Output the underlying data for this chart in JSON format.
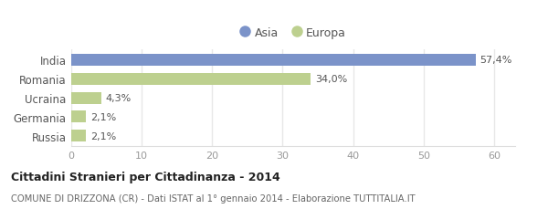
{
  "categories": [
    "India",
    "Romania",
    "Ucraina",
    "Germania",
    "Russia"
  ],
  "values": [
    57.4,
    34.0,
    4.3,
    2.1,
    2.1
  ],
  "labels": [
    "57,4%",
    "34,0%",
    "4,3%",
    "2,1%",
    "2,1%"
  ],
  "colors": [
    "#7b93c9",
    "#bdd08f",
    "#bdd08f",
    "#bdd08f",
    "#bdd08f"
  ],
  "legend_entries": [
    {
      "label": "Asia",
      "color": "#7b93c9"
    },
    {
      "label": "Europa",
      "color": "#bdd08f"
    }
  ],
  "xlim": [
    0,
    63
  ],
  "xticks": [
    0,
    10,
    20,
    30,
    40,
    50,
    60
  ],
  "title": "Cittadini Stranieri per Cittadinanza - 2014",
  "subtitle": "COMUNE DI DRIZZONA (CR) - Dati ISTAT al 1° gennaio 2014 - Elaborazione TUTTITALIA.IT",
  "bg_color": "#ffffff",
  "bar_height": 0.62,
  "grid_color": "#e8e8e8"
}
